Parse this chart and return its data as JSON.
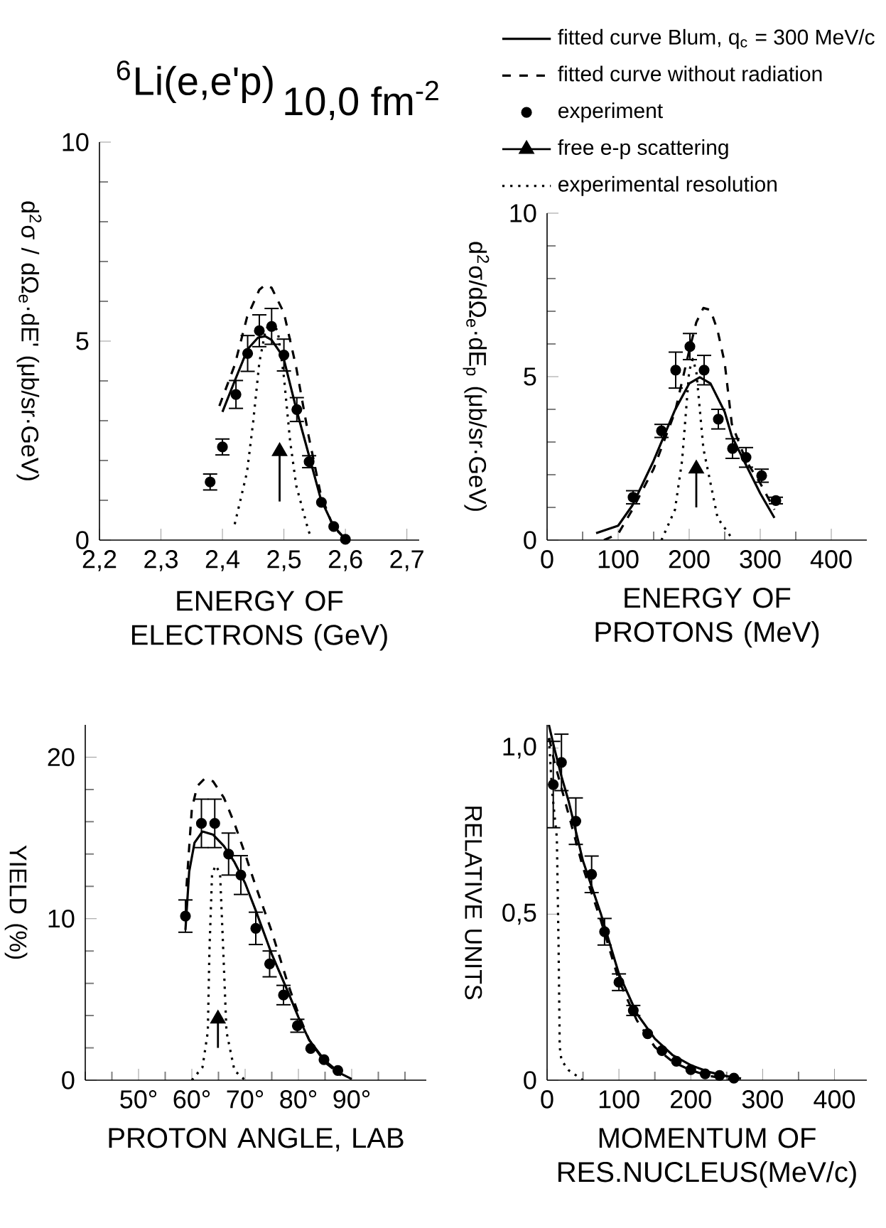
{
  "chart_data": [
    {
      "type": "line",
      "title": "$^{6}$Li(e,e'p)",
      "subtitle": "10,0 fm$^{-2}$",
      "xlabel": "ENERGY OF ELECTRONS (GeV)",
      "ylabel": "d$^{2}$σ / dΩ$_{e}$·dE' (μb/sr·GeV)",
      "xlim": [
        2.2,
        2.72
      ],
      "xticks": [
        {
          "value": 2.2,
          "label": "2,2"
        },
        {
          "value": 2.3,
          "label": "2,3"
        },
        {
          "value": 2.4,
          "label": "2,4"
        },
        {
          "value": 2.5,
          "label": "2,5"
        },
        {
          "value": 2.6,
          "label": "2,6"
        },
        {
          "value": 2.7,
          "label": "2,7"
        }
      ],
      "ylim": [
        0,
        10
      ],
      "yticks": [
        0,
        {
          "value": 1,
          "label": null
        },
        {
          "value": 2,
          "label": null
        },
        {
          "value": 3,
          "label": null
        },
        {
          "value": 4,
          "label": null
        },
        5,
        {
          "value": 6,
          "label": null
        },
        {
          "value": 7,
          "label": null
        },
        {
          "value": 8,
          "label": null
        },
        {
          "value": 9,
          "label": null
        },
        10
      ],
      "series": [
        {
          "line_style": "solid",
          "color": "#000000",
          "x": [
            2.4,
            2.42,
            2.441,
            2.458,
            2.47,
            2.48,
            2.499,
            2.52,
            2.54,
            2.56,
            2.58,
            2.6
          ],
          "values": [
            3.22,
            4.0,
            4.8,
            5.09,
            5.12,
            5.03,
            4.6,
            3.3,
            2.17,
            1.03,
            0.37,
            0.02
          ]
        },
        {
          "line_style": "dashed",
          "color": "#000000",
          "x": [
            2.395,
            2.42,
            2.44,
            2.46,
            2.47,
            2.48,
            2.5,
            2.52,
            2.54,
            2.56,
            2.58,
            2.6
          ],
          "values": [
            3.37,
            4.4,
            5.6,
            6.29,
            6.42,
            6.34,
            5.71,
            4.34,
            2.63,
            1.14,
            0.34,
            0.02
          ]
        },
        {
          "type": "scatter",
          "marker": "circle",
          "color": "#000000",
          "x": [
            2.38,
            2.4,
            2.422,
            2.441,
            2.46,
            2.48,
            2.5,
            2.521,
            2.541,
            2.561,
            2.581,
            2.6
          ],
          "values": [
            1.46,
            2.34,
            3.66,
            4.69,
            5.26,
            5.37,
            4.65,
            3.28,
            1.97,
            0.95,
            0.34,
            0.02
          ],
          "errors": [
            0.2,
            0.2,
            0.35,
            0.45,
            0.4,
            0.45,
            0.4,
            0.3,
            0.15,
            null,
            null,
            null
          ]
        },
        {
          "marker": "triangle",
          "line_style": "solid",
          "color": "#000000",
          "x": [
            2.493,
            2.493
          ],
          "values": [
            0.97,
            2.23
          ]
        },
        {
          "line_style": "dotted",
          "color": "#000000",
          "x": [
            2.42,
            2.44,
            2.45,
            2.46,
            2.47,
            2.478,
            2.49,
            2.5,
            2.51,
            2.52,
            2.54,
            2.545
          ],
          "values": [
            0.4,
            1.71,
            2.97,
            4.46,
            5.26,
            5.49,
            5.26,
            4.1,
            2.5,
            1.37,
            0.23,
            0.05
          ]
        }
      ]
    },
    {
      "type": "line",
      "xlabel": "ENERGY OF PROTONS (MeV)",
      "ylabel": "d$^{2}$σ/dΩ$_{e}$·dE$_{p}$ (μb/sr·GeV)",
      "legend": "top",
      "xlim": [
        0,
        450
      ],
      "xticks": [
        0,
        {
          "value": 50,
          "label": null
        },
        100,
        {
          "value": 150,
          "label": null
        },
        200,
        {
          "value": 250,
          "label": null
        },
        300,
        {
          "value": 350,
          "label": null
        },
        400
      ],
      "ylim": [
        0,
        10
      ],
      "yticks": [
        0,
        {
          "value": 1,
          "label": null
        },
        {
          "value": 2,
          "label": null
        },
        {
          "value": 3,
          "label": null
        },
        {
          "value": 4,
          "label": null
        },
        5,
        {
          "value": 6,
          "label": null
        },
        {
          "value": 7,
          "label": null
        },
        {
          "value": 8,
          "label": null
        },
        {
          "value": 9,
          "label": null
        },
        10
      ],
      "series": [
        {
          "name": "fitted curve Blum, q$_{c}$ = 300 MeV/c",
          "line_style": "solid",
          "color": "#000000",
          "x": [
            69,
            100,
            120,
            150,
            180,
            200,
            215,
            230,
            250,
            260,
            280,
            300,
            320
          ],
          "values": [
            0.21,
            0.44,
            1.06,
            2.43,
            3.98,
            4.79,
            4.98,
            4.79,
            3.92,
            3.18,
            2.3,
            1.43,
            0.68
          ]
        },
        {
          "name": "fitted curve without radiation",
          "line_style": "dashed",
          "color": "#000000",
          "x": [
            80,
            100,
            120,
            150,
            180,
            200,
            210,
            220,
            230,
            240,
            250,
            260,
            280,
            300,
            320
          ],
          "values": [
            0.0,
            0.19,
            0.93,
            2.18,
            3.92,
            5.79,
            6.66,
            7.1,
            7.04,
            6.41,
            5.42,
            3.55,
            2.43,
            1.74,
            0.93
          ]
        },
        {
          "type": "scatter",
          "name": "experiment",
          "marker": "circle",
          "color": "#000000",
          "x": [
            121,
            161,
            181,
            201,
            221,
            241,
            261,
            280,
            302,
            322
          ],
          "values": [
            1.31,
            3.34,
            5.2,
            5.92,
            5.2,
            3.7,
            2.8,
            2.53,
            1.97,
            1.21
          ],
          "errors": [
            0.2,
            0.2,
            0.55,
            0.4,
            0.45,
            0.3,
            0.3,
            0.3,
            0.2,
            0.1
          ]
        },
        {
          "name": "free e-p scattering",
          "marker": "triangle",
          "line_style": "solid",
          "color": "#000000",
          "x": [
            210,
            210
          ],
          "values": [
            1.0,
            2.18
          ]
        },
        {
          "name": "experimental resolution",
          "line_style": "dotted",
          "color": "#000000",
          "x": [
            161,
            180,
            190,
            200,
            205,
            210,
            220,
            240,
            260
          ],
          "values": [
            0.0,
            0.93,
            2.43,
            5.17,
            5.54,
            5.17,
            2.8,
            0.68,
            0.06
          ]
        }
      ]
    },
    {
      "type": "line",
      "xlabel": "PROTON ANGLE, LAB",
      "ylabel": "YIELD (%)",
      "xlim": [
        40,
        104
      ],
      "xticks": [
        {
          "value": 40,
          "label": null
        },
        {
          "value": 45,
          "label": null
        },
        {
          "value": 50,
          "label": "50°"
        },
        {
          "value": 55,
          "label": null
        },
        {
          "value": 60,
          "label": "60°"
        },
        {
          "value": 65,
          "label": null
        },
        {
          "value": 70,
          "label": "70°"
        },
        {
          "value": 75,
          "label": null
        },
        {
          "value": 80,
          "label": "80°"
        },
        {
          "value": 85,
          "label": null
        },
        {
          "value": 90,
          "label": "90°"
        },
        {
          "value": 95,
          "label": null
        },
        {
          "value": 100,
          "label": null
        }
      ],
      "ylim": [
        0,
        22
      ],
      "yticks": [
        0,
        {
          "value": 2,
          "label": null
        },
        {
          "value": 4,
          "label": null
        },
        {
          "value": 6,
          "label": null
        },
        {
          "value": 8,
          "label": null
        },
        10,
        {
          "value": 12,
          "label": null
        },
        {
          "value": 14,
          "label": null
        },
        {
          "value": 16,
          "label": null
        },
        {
          "value": 18,
          "label": null
        },
        20
      ],
      "series": [
        {
          "line_style": "solid",
          "color": "#000000",
          "x": [
            58.8,
            59.5,
            60.5,
            62,
            64,
            66,
            68,
            70,
            72,
            75,
            78,
            80,
            82,
            85,
            88,
            90
          ],
          "values": [
            9.3,
            12.9,
            14.7,
            15.4,
            15.2,
            14.5,
            13.5,
            12.2,
            10.5,
            7.8,
            5.5,
            3.9,
            2.5,
            1.2,
            0.4,
            0.07
          ]
        },
        {
          "line_style": "dashed",
          "color": "#000000",
          "x": [
            59,
            60,
            61,
            62.5,
            64,
            66,
            68,
            70,
            72,
            75,
            78,
            80,
            82,
            85,
            88
          ],
          "values": [
            12.0,
            16.8,
            18.2,
            18.7,
            18.5,
            17.5,
            15.9,
            14.0,
            12.0,
            9.2,
            6.0,
            4.1,
            2.5,
            1.1,
            0.3
          ]
        },
        {
          "type": "scatter",
          "marker": "circle",
          "color": "#000000",
          "x": [
            58.8,
            61.8,
            64.3,
            66.9,
            69.2,
            72.0,
            74.6,
            77.2,
            79.8,
            82.3,
            84.8,
            87.4
          ],
          "values": [
            10.16,
            15.9,
            15.9,
            14.0,
            12.7,
            9.4,
            7.2,
            5.27,
            3.37,
            1.96,
            1.27,
            0.6
          ],
          "errors": [
            1,
            1.5,
            1.5,
            1.3,
            1.2,
            1,
            0.8,
            0.6,
            0.4,
            null,
            null,
            null
          ]
        },
        {
          "marker": "triangle",
          "line_style": "solid",
          "color": "#000000",
          "x": [
            64.9,
            64.9
          ],
          "values": [
            2.0,
            3.8
          ]
        },
        {
          "line_style": "dotted",
          "color": "#000000",
          "x": [
            60,
            62,
            63,
            63.3,
            63.8,
            64.5,
            65.3,
            65.9,
            66.5,
            68,
            70
          ],
          "values": [
            0,
            0.8,
            3,
            8,
            12.8,
            13.3,
            12.8,
            8,
            3,
            0.6,
            0
          ]
        }
      ]
    },
    {
      "type": "line",
      "xlabel": "MOMENTUM OF RES.NUCLEUS(MeV/c)",
      "ylabel": "RELATIVE UNITS",
      "xlim": [
        0,
        445
      ],
      "xticks": [
        0,
        {
          "value": 50,
          "label": null
        },
        100,
        {
          "value": 150,
          "label": null
        },
        200,
        {
          "value": 250,
          "label": null
        },
        300,
        {
          "value": 350,
          "label": null
        },
        400
      ],
      "ylim": [
        0,
        1.07
      ],
      "yticks": [
        0,
        {
          "value": 0.5,
          "label": "0,5"
        },
        {
          "value": 1.0,
          "label": "1,0"
        }
      ],
      "series": [
        {
          "line_style": "solid",
          "color": "#000000",
          "x": [
            2.5,
            10,
            20,
            30,
            50,
            75,
            100,
            125,
            150,
            175,
            200,
            225,
            250,
            270
          ],
          "values": [
            1.07,
            1.0,
            0.915,
            0.84,
            0.66,
            0.5,
            0.32,
            0.2,
            0.125,
            0.075,
            0.045,
            0.025,
            0.012,
            0.005
          ]
        },
        {
          "line_style": "dashed",
          "color": "#000000",
          "x": [
            3,
            10,
            20,
            30,
            50,
            75,
            100,
            125,
            150,
            175,
            200,
            225,
            250,
            270
          ],
          "values": [
            1.03,
            0.96,
            0.88,
            0.8,
            0.64,
            0.48,
            0.3,
            0.18,
            0.1,
            0.055,
            0.03,
            0.013,
            0.004,
            0.0
          ]
        },
        {
          "type": "scatter",
          "marker": "circle",
          "color": "#000000",
          "x": [
            8.6,
            20,
            40,
            62,
            80,
            100,
            120,
            140,
            160,
            180,
            200,
            220,
            240,
            260
          ],
          "values": [
            0.89,
            0.957,
            0.78,
            0.62,
            0.447,
            0.295,
            0.21,
            0.14,
            0.089,
            0.057,
            0.032,
            0.019,
            0.014,
            0.006
          ],
          "errors": [
            0.13,
            0.085,
            0.07,
            0.055,
            0.04,
            0.025,
            0.015,
            null,
            null,
            null,
            null,
            null,
            null,
            null
          ]
        },
        {
          "line_style": "dotted",
          "color": "#000000",
          "x": [
            2.5,
            7,
            13.6,
            16,
            17.6,
            20,
            30,
            40,
            50
          ],
          "values": [
            1.03,
            0.87,
            0.73,
            0.4,
            0.1,
            0.06,
            0.03,
            0.015,
            0
          ]
        }
      ]
    }
  ]
}
